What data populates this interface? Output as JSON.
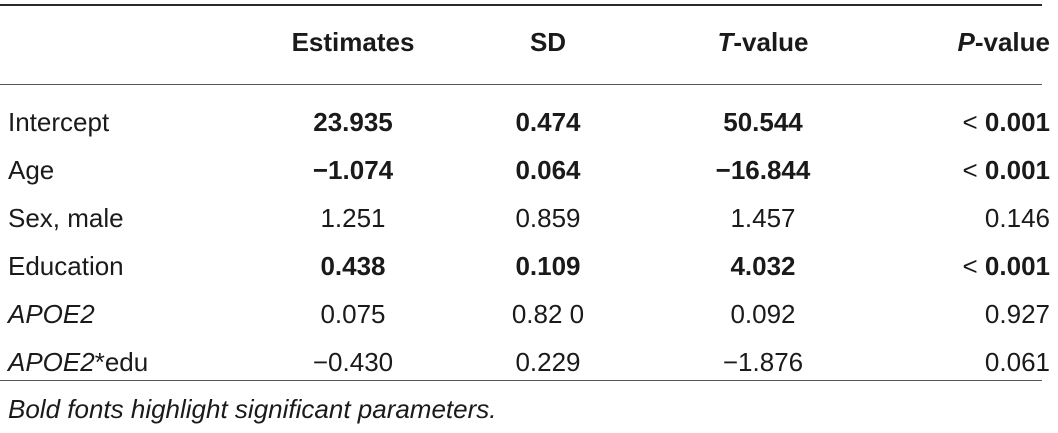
{
  "headers": {
    "parameter": "",
    "estimates": "Estimates",
    "sd": "SD",
    "t_letter": "T",
    "t_suffix": "-value",
    "p_letter": "P",
    "p_suffix": "-value"
  },
  "rows": [
    {
      "param": "Intercept",
      "param_suffix": "",
      "est": "23.935",
      "sd": "0.474",
      "t": "50.544",
      "p_prefix": "< ",
      "p": "0.001",
      "significant": true
    },
    {
      "param": "Age",
      "param_suffix": "",
      "est": "−1.074",
      "sd": "0.064",
      "t": "−16.844",
      "p_prefix": "< ",
      "p": "0.001",
      "significant": true
    },
    {
      "param": "Sex, male",
      "param_suffix": "",
      "est": "1.251",
      "sd": "0.859",
      "t": "1.457",
      "p_prefix": "",
      "p": "0.146",
      "significant": false
    },
    {
      "param": "Education",
      "param_suffix": "",
      "est": "0.438",
      "sd": "0.109",
      "t": "4.032",
      "p_prefix": "< ",
      "p": "0.001",
      "significant": true
    },
    {
      "param": "APOE2",
      "param_suffix": "",
      "est": "0.075",
      "sd": "0.82 0",
      "t": "0.092",
      "p_prefix": "",
      "p": "0.927",
      "significant": false
    },
    {
      "param": "APOE2",
      "param_suffix": "*edu",
      "est": "−0.430",
      "sd": "0.229",
      "t": "−1.876",
      "p_prefix": "",
      "p": "0.061",
      "significant": false
    }
  ],
  "footnote": "Bold fonts highlight significant parameters."
}
